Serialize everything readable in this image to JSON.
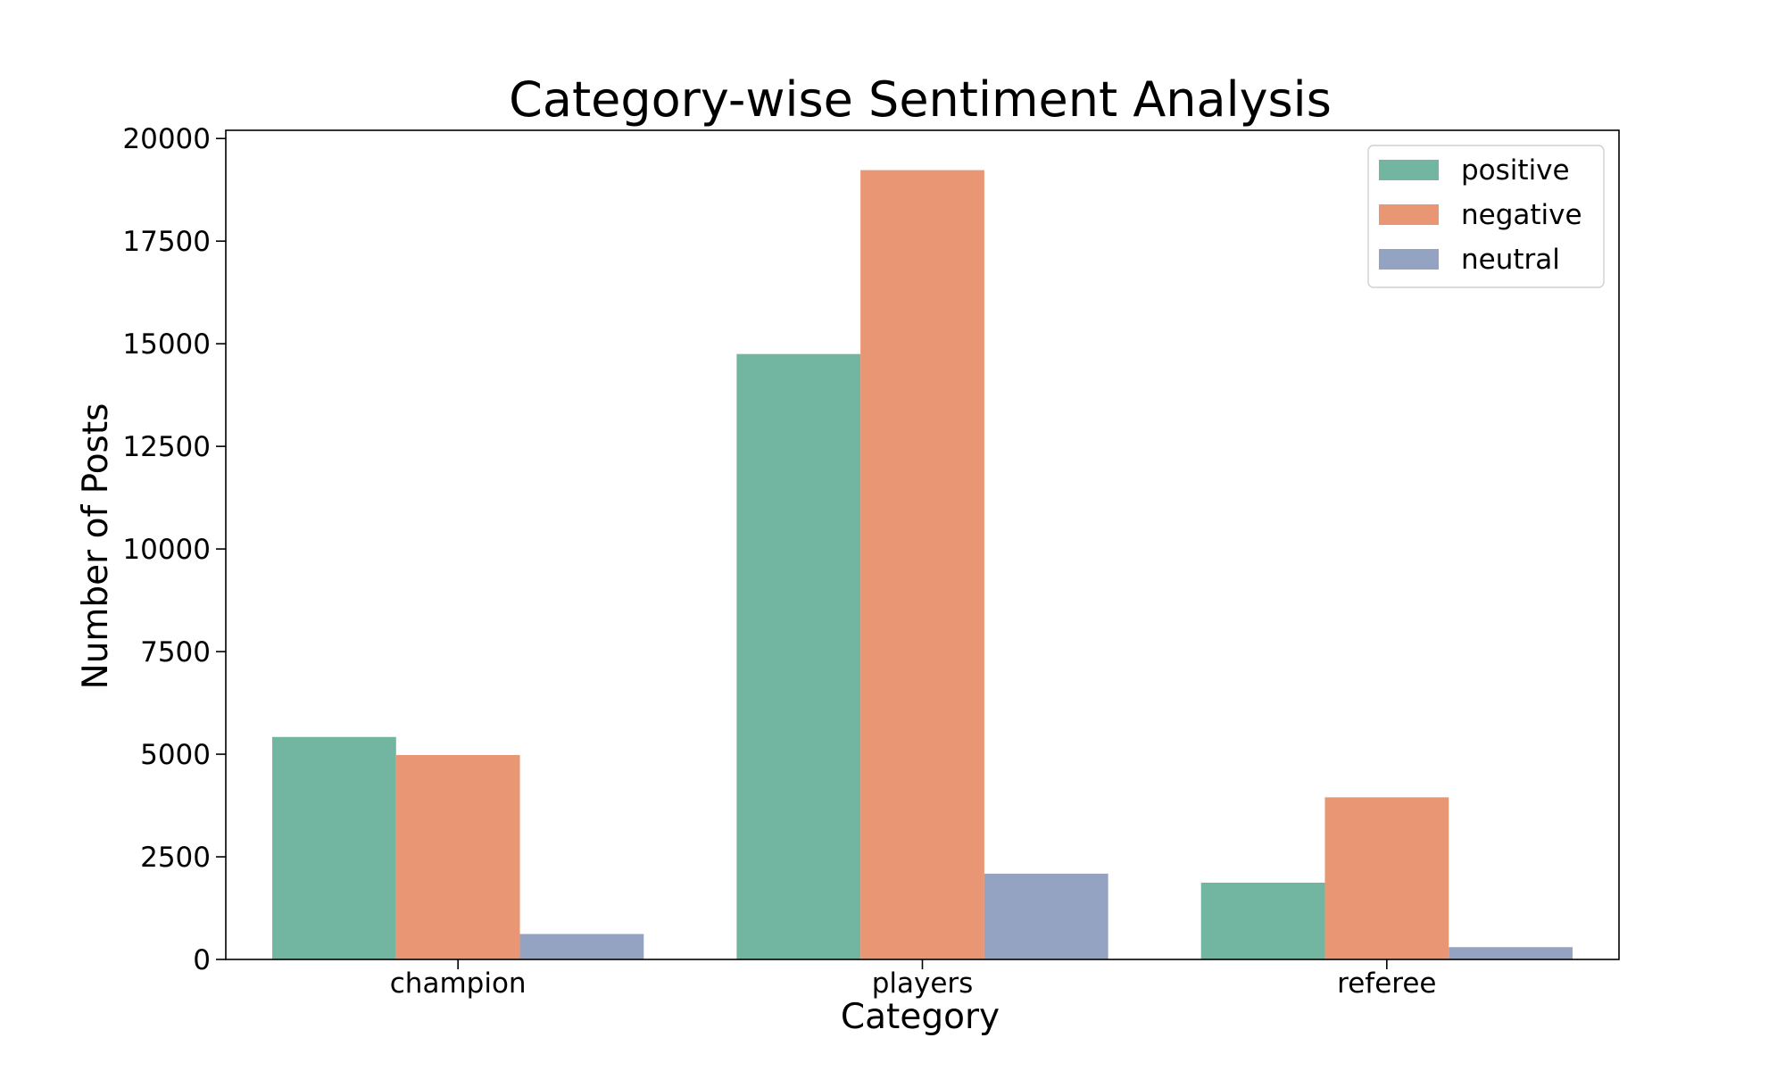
{
  "chart_data": {
    "type": "bar",
    "title": "Category-wise Sentiment Analysis",
    "xlabel": "Category",
    "ylabel": "Number of Posts",
    "categories": [
      "champion",
      "players",
      "referee"
    ],
    "series": [
      {
        "name": "positive",
        "color": "#72b6a1",
        "values": [
          5420,
          14750,
          1870
        ]
      },
      {
        "name": "negative",
        "color": "#e99675",
        "values": [
          4980,
          19230,
          3950
        ]
      },
      {
        "name": "neutral",
        "color": "#95a3c3",
        "values": [
          620,
          2090,
          300
        ]
      }
    ],
    "ylim": [
      0,
      20200
    ],
    "yticks": [
      0,
      2500,
      5000,
      7500,
      10000,
      12500,
      15000,
      17500,
      20000
    ],
    "ytick_labels": [
      "0",
      "2500",
      "5000",
      "7500",
      "10000",
      "12500",
      "15000",
      "17500",
      "20000"
    ],
    "grid": false,
    "legend_position": "top-right"
  }
}
